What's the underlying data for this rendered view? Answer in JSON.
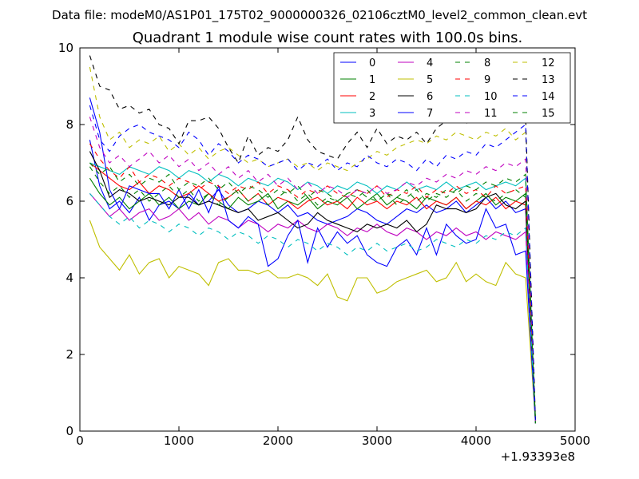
{
  "figure": {
    "suptitle": "Data file: modeM0/AS1P01_175T02_9000000326_02106cztM0_level2_common_clean.evt"
  },
  "chart_data": {
    "type": "line",
    "title": "Quadrant 1 module wise count rates with 100.0s bins.",
    "xlabel": "",
    "ylabel": "",
    "x_offset_label": "+1.93393e8",
    "xlim": [
      0,
      5000
    ],
    "ylim": [
      0,
      10
    ],
    "xticks": [
      0,
      1000,
      2000,
      3000,
      4000,
      5000
    ],
    "yticks": [
      0,
      2,
      4,
      6,
      8,
      10
    ],
    "grid": false,
    "legend": {
      "position": "top-right",
      "columns": 4
    },
    "x": [
      100,
      200,
      300,
      400,
      500,
      600,
      700,
      800,
      900,
      1000,
      1100,
      1200,
      1300,
      1400,
      1500,
      1600,
      1700,
      1800,
      1900,
      2000,
      2100,
      2200,
      2300,
      2400,
      2500,
      2600,
      2700,
      2800,
      2900,
      3000,
      3100,
      3200,
      3300,
      3400,
      3500,
      3600,
      3700,
      3800,
      3900,
      4000,
      4100,
      4200,
      4300,
      4400,
      4500,
      4600
    ],
    "series": [
      {
        "name": "0",
        "color": "#0000ff",
        "dash": "solid",
        "values": [
          7.6,
          6.4,
          5.8,
          6.0,
          5.7,
          6.1,
          5.5,
          5.9,
          6.0,
          5.8,
          6.2,
          5.9,
          6.0,
          6.3,
          5.9,
          5.7,
          5.8,
          6.0,
          5.9,
          5.7,
          5.9,
          5.6,
          5.7,
          5.5,
          5.4,
          5.5,
          5.6,
          5.8,
          5.7,
          5.5,
          5.4,
          5.6,
          5.8,
          5.7,
          5.9,
          5.7,
          5.8,
          6.0,
          5.7,
          5.9,
          6.1,
          5.8,
          6.0,
          5.7,
          5.8,
          0.2
        ]
      },
      {
        "name": "1",
        "color": "#008000",
        "dash": "solid",
        "values": [
          6.6,
          6.2,
          5.9,
          6.1,
          5.8,
          6.0,
          6.2,
          5.9,
          6.1,
          5.8,
          6.0,
          5.9,
          6.2,
          6.0,
          5.8,
          6.1,
          5.9,
          6.0,
          6.2,
          5.8,
          6.0,
          5.9,
          6.1,
          5.8,
          6.0,
          5.9,
          6.1,
          5.8,
          6.0,
          6.2,
          5.9,
          6.1,
          6.0,
          5.8,
          6.1,
          6.0,
          5.9,
          6.1,
          5.8,
          6.0,
          6.2,
          5.9,
          6.1,
          6.0,
          6.2,
          0.3
        ]
      },
      {
        "name": "2",
        "color": "#ff0000",
        "dash": "solid",
        "values": [
          7.0,
          6.8,
          6.6,
          6.4,
          6.3,
          6.5,
          6.2,
          6.4,
          6.3,
          6.1,
          6.2,
          6.4,
          6.2,
          6.0,
          6.1,
          6.3,
          6.0,
          6.2,
          5.9,
          6.1,
          6.0,
          5.8,
          6.0,
          6.1,
          5.9,
          6.0,
          5.8,
          6.1,
          5.9,
          6.0,
          5.8,
          6.0,
          5.9,
          6.1,
          5.8,
          6.0,
          5.9,
          6.1,
          5.8,
          6.0,
          5.9,
          6.1,
          5.8,
          6.0,
          5.9,
          0.2
        ]
      },
      {
        "name": "3",
        "color": "#00bfbf",
        "dash": "solid",
        "values": [
          7.0,
          6.9,
          6.8,
          6.7,
          6.9,
          6.8,
          6.7,
          6.9,
          6.8,
          6.6,
          6.8,
          6.7,
          6.5,
          6.7,
          6.6,
          6.4,
          6.6,
          6.5,
          6.4,
          6.6,
          6.5,
          6.3,
          6.5,
          6.4,
          6.2,
          6.4,
          6.3,
          6.5,
          6.4,
          6.2,
          6.4,
          6.3,
          6.5,
          6.3,
          6.4,
          6.3,
          6.5,
          6.3,
          6.4,
          6.5,
          6.3,
          6.4,
          6.5,
          6.4,
          6.6,
          0.2
        ]
      },
      {
        "name": "4",
        "color": "#bf00bf",
        "dash": "solid",
        "values": [
          6.2,
          5.9,
          5.6,
          5.8,
          5.5,
          5.7,
          5.8,
          5.5,
          5.6,
          5.8,
          5.5,
          5.7,
          5.4,
          5.6,
          5.5,
          5.3,
          5.5,
          5.4,
          5.2,
          5.4,
          5.3,
          5.5,
          5.3,
          5.2,
          5.4,
          5.3,
          5.1,
          5.3,
          5.2,
          5.4,
          5.2,
          5.1,
          5.3,
          5.2,
          5.0,
          5.2,
          5.1,
          5.3,
          5.1,
          5.2,
          5.0,
          5.2,
          5.1,
          5.0,
          5.2,
          0.2
        ]
      },
      {
        "name": "5",
        "color": "#bfbf00",
        "dash": "solid",
        "values": [
          5.5,
          4.8,
          4.5,
          4.2,
          4.6,
          4.1,
          4.4,
          4.5,
          4.0,
          4.3,
          4.2,
          4.1,
          3.8,
          4.4,
          4.5,
          4.2,
          4.2,
          4.1,
          4.2,
          4.0,
          4.0,
          4.1,
          4.0,
          3.8,
          4.1,
          3.5,
          3.4,
          4.0,
          4.0,
          3.6,
          3.7,
          3.9,
          4.0,
          4.1,
          4.2,
          3.9,
          4.0,
          4.4,
          3.9,
          4.1,
          3.9,
          3.8,
          4.4,
          4.1,
          4.0,
          0.2
        ]
      },
      {
        "name": "6",
        "color": "#000000",
        "dash": "solid",
        "values": [
          7.3,
          6.8,
          6.1,
          6.3,
          6.2,
          6.0,
          6.1,
          6.0,
          5.9,
          6.1,
          6.1,
          5.9,
          6.0,
          5.9,
          5.8,
          5.7,
          5.8,
          5.5,
          5.6,
          5.7,
          5.5,
          5.3,
          5.4,
          5.7,
          5.5,
          5.4,
          5.3,
          5.2,
          5.4,
          5.3,
          5.4,
          5.3,
          5.5,
          5.2,
          5.4,
          5.9,
          5.8,
          5.8,
          5.7,
          5.8,
          6.1,
          6.2,
          5.9,
          5.8,
          6.0,
          0.3
        ]
      },
      {
        "name": "7",
        "color": "#0000ff",
        "dash": "solid",
        "values": [
          8.7,
          7.8,
          6.3,
          5.8,
          6.4,
          6.3,
          6.2,
          6.2,
          5.8,
          6.3,
          5.8,
          6.3,
          5.7,
          6.4,
          5.5,
          5.3,
          5.6,
          5.4,
          4.3,
          4.5,
          5.1,
          5.5,
          4.4,
          5.3,
          4.8,
          5.2,
          4.9,
          5.1,
          4.6,
          4.4,
          4.3,
          4.8,
          5.0,
          4.6,
          5.3,
          4.6,
          5.4,
          5.1,
          4.9,
          5.0,
          5.8,
          5.3,
          5.4,
          4.6,
          4.7,
          0.2
        ]
      },
      {
        "name": "8",
        "color": "#008000",
        "dash": "dashed",
        "values": [
          6.9,
          6.5,
          6.2,
          6.4,
          6.1,
          6.3,
          6.0,
          6.2,
          6.4,
          6.1,
          6.3,
          6.0,
          6.2,
          5.9,
          6.1,
          6.3,
          6.0,
          6.2,
          5.9,
          6.1,
          6.3,
          6.0,
          6.2,
          5.9,
          6.1,
          6.0,
          6.2,
          6.3,
          6.1,
          6.0,
          6.2,
          5.9,
          6.1,
          6.3,
          6.0,
          6.2,
          6.1,
          6.3,
          6.0,
          6.2,
          6.1,
          6.0,
          6.2,
          6.3,
          6.1,
          0.3
        ]
      },
      {
        "name": "9",
        "color": "#ff0000",
        "dash": "dashed",
        "values": [
          7.5,
          7.1,
          6.8,
          6.6,
          6.9,
          6.5,
          6.7,
          6.6,
          6.4,
          6.6,
          6.5,
          6.3,
          6.5,
          6.4,
          6.2,
          6.4,
          6.3,
          6.5,
          6.2,
          6.4,
          6.3,
          6.1,
          6.3,
          6.2,
          6.4,
          6.2,
          6.1,
          6.3,
          6.2,
          6.4,
          6.1,
          6.3,
          6.2,
          6.4,
          6.1,
          6.3,
          6.2,
          6.4,
          6.2,
          6.3,
          6.1,
          6.4,
          6.2,
          6.3,
          6.4,
          0.2
        ]
      },
      {
        "name": "10",
        "color": "#00bfbf",
        "dash": "dashed",
        "values": [
          6.2,
          5.9,
          5.6,
          5.4,
          5.6,
          5.3,
          5.5,
          5.4,
          5.2,
          5.4,
          5.3,
          5.1,
          5.3,
          5.2,
          5.0,
          5.2,
          5.1,
          4.9,
          5.1,
          5.0,
          4.8,
          5.0,
          4.9,
          4.7,
          4.9,
          4.8,
          4.6,
          4.8,
          4.7,
          4.9,
          4.7,
          4.8,
          4.9,
          4.7,
          4.8,
          5.0,
          4.9,
          4.8,
          5.0,
          4.9,
          5.1,
          5.0,
          5.2,
          5.1,
          5.3,
          0.2
        ]
      },
      {
        "name": "11",
        "color": "#bf00bf",
        "dash": "dashed",
        "values": [
          8.2,
          7.4,
          7.0,
          7.2,
          6.9,
          7.1,
          7.3,
          7.0,
          7.2,
          6.9,
          7.1,
          6.8,
          7.0,
          6.7,
          6.9,
          6.6,
          6.8,
          6.5,
          6.7,
          6.4,
          6.6,
          6.3,
          6.5,
          6.2,
          6.4,
          6.3,
          6.1,
          6.3,
          6.2,
          6.4,
          6.2,
          6.3,
          6.5,
          6.4,
          6.6,
          6.5,
          6.7,
          6.6,
          6.8,
          6.7,
          6.9,
          6.8,
          7.0,
          6.9,
          7.1,
          0.2
        ]
      },
      {
        "name": "12",
        "color": "#bfbf00",
        "dash": "dashed",
        "values": [
          9.5,
          8.2,
          7.6,
          7.8,
          7.4,
          7.6,
          7.5,
          7.7,
          7.3,
          7.5,
          7.2,
          7.4,
          7.1,
          7.3,
          7.4,
          7.2,
          7.0,
          7.1,
          6.9,
          7.0,
          7.1,
          6.9,
          7.0,
          6.8,
          7.0,
          6.9,
          6.8,
          7.0,
          7.1,
          7.3,
          7.2,
          7.4,
          7.5,
          7.6,
          7.5,
          7.7,
          7.6,
          7.8,
          7.7,
          7.6,
          7.8,
          7.7,
          7.9,
          7.6,
          7.8,
          0.2
        ]
      },
      {
        "name": "13",
        "color": "#000000",
        "dash": "dashed",
        "values": [
          9.8,
          9.0,
          8.9,
          8.4,
          8.5,
          8.3,
          8.4,
          8.0,
          7.9,
          7.5,
          8.1,
          8.1,
          8.2,
          7.9,
          7.4,
          7.0,
          7.7,
          7.2,
          7.4,
          7.3,
          7.6,
          8.2,
          7.6,
          7.3,
          7.2,
          7.1,
          7.5,
          7.8,
          7.4,
          7.9,
          7.5,
          7.7,
          7.6,
          7.8,
          7.5,
          7.9,
          8.1,
          8.3,
          8.0,
          8.6,
          8.3,
          8.4,
          8.7,
          8.5,
          8.2,
          0.3
        ]
      },
      {
        "name": "14",
        "color": "#0000ff",
        "dash": "dashed",
        "values": [
          8.5,
          7.6,
          7.3,
          7.7,
          7.9,
          8.0,
          7.8,
          7.7,
          7.6,
          7.4,
          7.8,
          7.6,
          7.2,
          7.5,
          7.3,
          7.0,
          7.2,
          7.1,
          6.9,
          7.0,
          7.1,
          6.8,
          7.0,
          6.9,
          7.1,
          6.8,
          7.0,
          6.9,
          7.2,
          7.0,
          6.9,
          7.1,
          7.0,
          6.8,
          7.1,
          6.9,
          7.2,
          7.1,
          7.3,
          7.2,
          7.5,
          7.4,
          7.6,
          7.8,
          8.0,
          0.2
        ]
      },
      {
        "name": "15",
        "color": "#008000",
        "dash": "dashed",
        "values": [
          7.0,
          6.7,
          6.9,
          6.5,
          6.7,
          6.4,
          6.6,
          6.5,
          6.7,
          6.3,
          6.5,
          6.4,
          6.6,
          6.3,
          6.5,
          6.2,
          6.4,
          6.3,
          6.1,
          6.3,
          6.2,
          6.4,
          6.1,
          6.3,
          6.2,
          6.0,
          6.2,
          6.1,
          6.3,
          6.0,
          6.2,
          6.1,
          6.3,
          6.0,
          6.2,
          6.1,
          6.3,
          6.2,
          6.4,
          6.3,
          6.5,
          6.4,
          6.6,
          6.5,
          6.7,
          0.2
        ]
      }
    ]
  }
}
